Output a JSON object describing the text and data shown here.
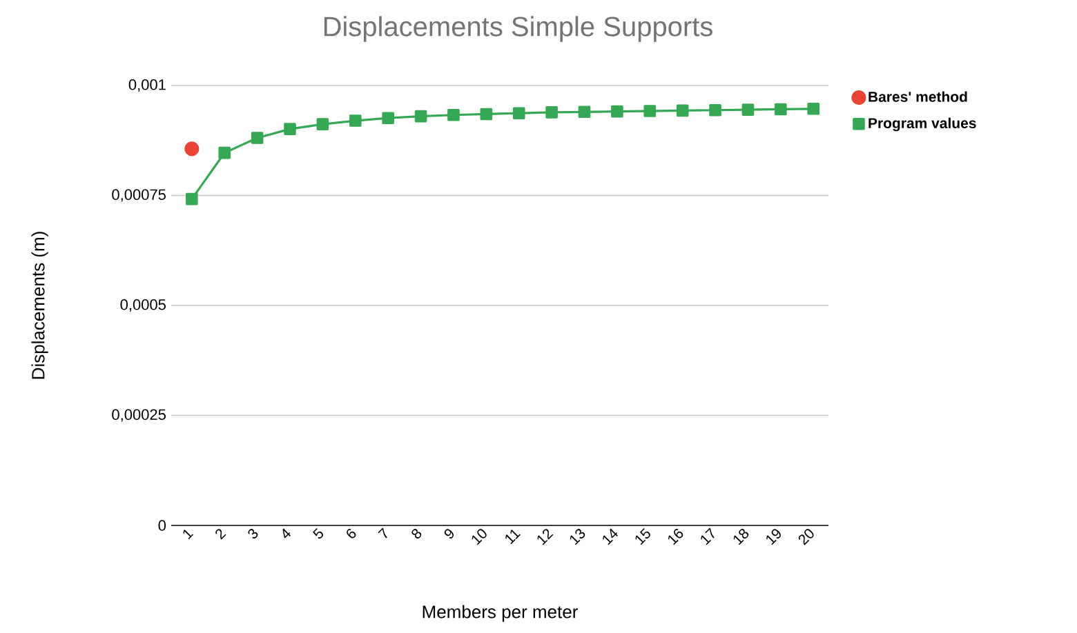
{
  "chart_data": {
    "type": "line",
    "title": "Displacements Simple Supports",
    "xlabel": "Members per meter",
    "ylabel": "Displacements (m)",
    "categories": [
      "1",
      "2",
      "3",
      "4",
      "5",
      "6",
      "7",
      "8",
      "9",
      "10",
      "11",
      "12",
      "13",
      "14",
      "15",
      "16",
      "17",
      "18",
      "19",
      "20"
    ],
    "series": [
      {
        "name": "Bares' method",
        "type": "scatter",
        "marker": "circle",
        "color": "#ea4335",
        "values": [
          0.000856,
          null,
          null,
          null,
          null,
          null,
          null,
          null,
          null,
          null,
          null,
          null,
          null,
          null,
          null,
          null,
          null,
          null,
          null,
          null
        ]
      },
      {
        "name": "Program values",
        "marker": "square",
        "line_style": "solid",
        "color": "#34a853",
        "values": [
          0.000742,
          0.000847,
          0.000881,
          0.000901,
          0.000912,
          0.00092,
          0.000926,
          0.00093,
          0.000933,
          0.000935,
          0.000937,
          0.000939,
          0.00094,
          0.000941,
          0.000942,
          0.000943,
          0.000944,
          0.000945,
          0.000946,
          0.000947
        ]
      }
    ],
    "ylim": [
      0,
      0.001
    ],
    "yticks": [
      {
        "value": 0,
        "label": "0"
      },
      {
        "value": 0.00025,
        "label": "0,00025"
      },
      {
        "value": 0.0005,
        "label": "0,0005"
      },
      {
        "value": 0.00075,
        "label": "0,00075"
      },
      {
        "value": 0.001,
        "label": "0,001"
      }
    ],
    "grid": "y",
    "legend": "top right"
  }
}
